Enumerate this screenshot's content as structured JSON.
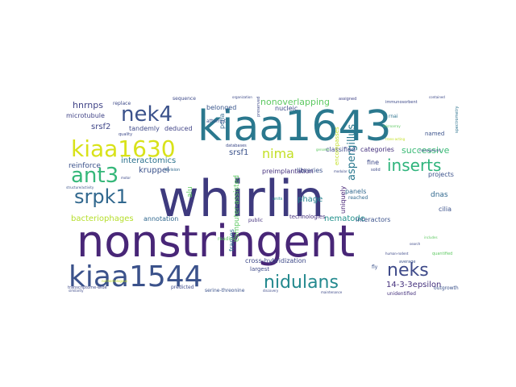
{
  "palette": {
    "dark_purple": "#440154",
    "indigo": "#3b528b",
    "navy": "#31688e",
    "teal": "#21918c",
    "green_teal": "#27ad81",
    "green": "#5ec962",
    "lime": "#addc30",
    "yellow": "#fde725"
  },
  "words": [
    {
      "text": "whirlin",
      "color": "#3e3a7e"
    },
    {
      "text": "nonstringent",
      "color": "#482677"
    },
    {
      "text": "kiaa1643",
      "color": "#2a788e"
    },
    {
      "text": "kiaa1544",
      "color": "#3b528b"
    },
    {
      "text": "kiaa1630",
      "color": "#d8e219"
    },
    {
      "text": "nek4",
      "color": "#3b528b"
    },
    {
      "text": "ant3",
      "color": "#35b779"
    },
    {
      "text": "srpk1",
      "color": "#31688e"
    },
    {
      "text": "nidulans",
      "color": "#23898e"
    },
    {
      "text": "neks",
      "color": "#3e4a89"
    },
    {
      "text": "inserts",
      "color": "#2fb47c"
    },
    {
      "text": "nima",
      "color": "#c2df23"
    },
    {
      "text": "aspergillus",
      "color": "#2a788e"
    },
    {
      "text": "successive",
      "color": "#3aba76"
    },
    {
      "text": "nonoverlapping",
      "color": "#5ec962"
    },
    {
      "text": "hnrnps",
      "color": "#414487"
    },
    {
      "text": "srsf2",
      "color": "#404688"
    },
    {
      "text": "srsf1",
      "color": "#3b528b"
    },
    {
      "text": "interactomics",
      "color": "#2c728e"
    },
    {
      "text": "kruppel",
      "color": "#3b528b"
    },
    {
      "text": "bacteriophages",
      "color": "#b5de2b"
    },
    {
      "text": "reinforce",
      "color": "#3b528b"
    },
    {
      "text": "nematode",
      "color": "#21918c"
    },
    {
      "text": "14-3-3epsilon",
      "color": "#46327e"
    },
    {
      "text": "microtubule",
      "color": "#414487"
    },
    {
      "text": "tandemly",
      "color": "#3e4a89"
    },
    {
      "text": "deduced",
      "color": "#414487"
    },
    {
      "text": "belonged",
      "color": "#39568c"
    },
    {
      "text": "libraries",
      "color": "#3b528b"
    },
    {
      "text": "phage",
      "color": "#25848e"
    },
    {
      "text": "preimplantation",
      "color": "#46327e"
    },
    {
      "text": "cross-hybridization",
      "color": "#3e4a89"
    },
    {
      "text": "dnas",
      "color": "#31688e"
    },
    {
      "text": "cilia",
      "color": "#3b528b"
    },
    {
      "text": "panels",
      "color": "#31688e"
    },
    {
      "text": "annotation",
      "color": "#31688e"
    },
    {
      "text": "largest",
      "color": "#3e4a89"
    },
    {
      "text": "interactors",
      "color": "#3b528b"
    },
    {
      "text": "categories",
      "color": "#46327e"
    },
    {
      "text": "projects",
      "color": "#3b528b"
    },
    {
      "text": "nucleic",
      "color": "#3e4a89"
    },
    {
      "text": "classified",
      "color": "#3e4a89"
    },
    {
      "text": "fine",
      "color": "#3e4a89"
    },
    {
      "text": "pcna",
      "color": "#31688e"
    },
    {
      "text": "technologies",
      "color": "#46327e"
    },
    {
      "text": "computer-assisted",
      "color": "#5ec962"
    },
    {
      "text": "alu",
      "color": "#5ec962"
    },
    {
      "text": "frames",
      "color": "#2c728e"
    },
    {
      "text": "uniquely",
      "color": "#482677"
    },
    {
      "text": "encompasses",
      "color": "#c2df23"
    },
    {
      "text": "named",
      "color": "#3b528b"
    },
    {
      "text": "rnai",
      "color": "#2c728e"
    },
    {
      "text": "reached",
      "color": "#31688e"
    },
    {
      "text": "unidentified",
      "color": "#46327e"
    },
    {
      "text": "outgrowth",
      "color": "#3b528b"
    },
    {
      "text": "serine-threonine",
      "color": "#3b528b"
    },
    {
      "text": "predicted",
      "color": "#3e4a89"
    },
    {
      "text": "fly",
      "color": "#3b528b"
    },
    {
      "text": "public",
      "color": "#46327e"
    },
    {
      "text": "attempt",
      "color": "#3b528b"
    },
    {
      "text": "sequence",
      "color": "#3e4a89"
    },
    {
      "text": "replace",
      "color": "#3e4a89"
    },
    {
      "text": "quality",
      "color": "#3e4a89"
    },
    {
      "text": "assigned",
      "color": "#414487"
    },
    {
      "text": "immunosorbent",
      "color": "#3e4a89"
    },
    {
      "text": "spectrometry",
      "color": "#2c728e"
    },
    {
      "text": "average",
      "color": "#3b528b"
    },
    {
      "text": "reading",
      "color": "#5ec962"
    },
    {
      "text": "division",
      "color": "#31688e"
    },
    {
      "text": "units",
      "color": "#21918c"
    },
    {
      "text": "solid",
      "color": "#3e4a89"
    },
    {
      "text": "preserved",
      "color": "#3e4a89"
    },
    {
      "text": "quantified",
      "color": "#5ec962"
    },
    {
      "text": "databases",
      "color": "#3e4a89"
    },
    {
      "text": "genome",
      "color": "#5ec962"
    },
    {
      "text": "trans-acting",
      "color": "#c2df23"
    },
    {
      "text": "transcriptome-wide",
      "color": "#3e4a89"
    },
    {
      "text": "nonhomologous",
      "color": "#c2df23"
    },
    {
      "text": "structure/activity",
      "color": "#3b528b"
    },
    {
      "text": "human-rodent",
      "color": "#3e4a89"
    },
    {
      "text": "motor",
      "color": "#3e4a89"
    },
    {
      "text": "management",
      "color": "#3e4a89"
    },
    {
      "text": "contained",
      "color": "#3e4a89"
    },
    {
      "text": "organization",
      "color": "#3e4a89"
    },
    {
      "text": "microarray",
      "color": "#5ec962"
    },
    {
      "text": "search",
      "color": "#3e4a89"
    },
    {
      "text": "modular",
      "color": "#3e4a89"
    },
    {
      "text": "similarity",
      "color": "#3e4a89"
    },
    {
      "text": "discovery",
      "color": "#3e4a89"
    },
    {
      "text": "includes",
      "color": "#5ec962"
    },
    {
      "text": "maintenance",
      "color": "#3e4a89"
    }
  ]
}
